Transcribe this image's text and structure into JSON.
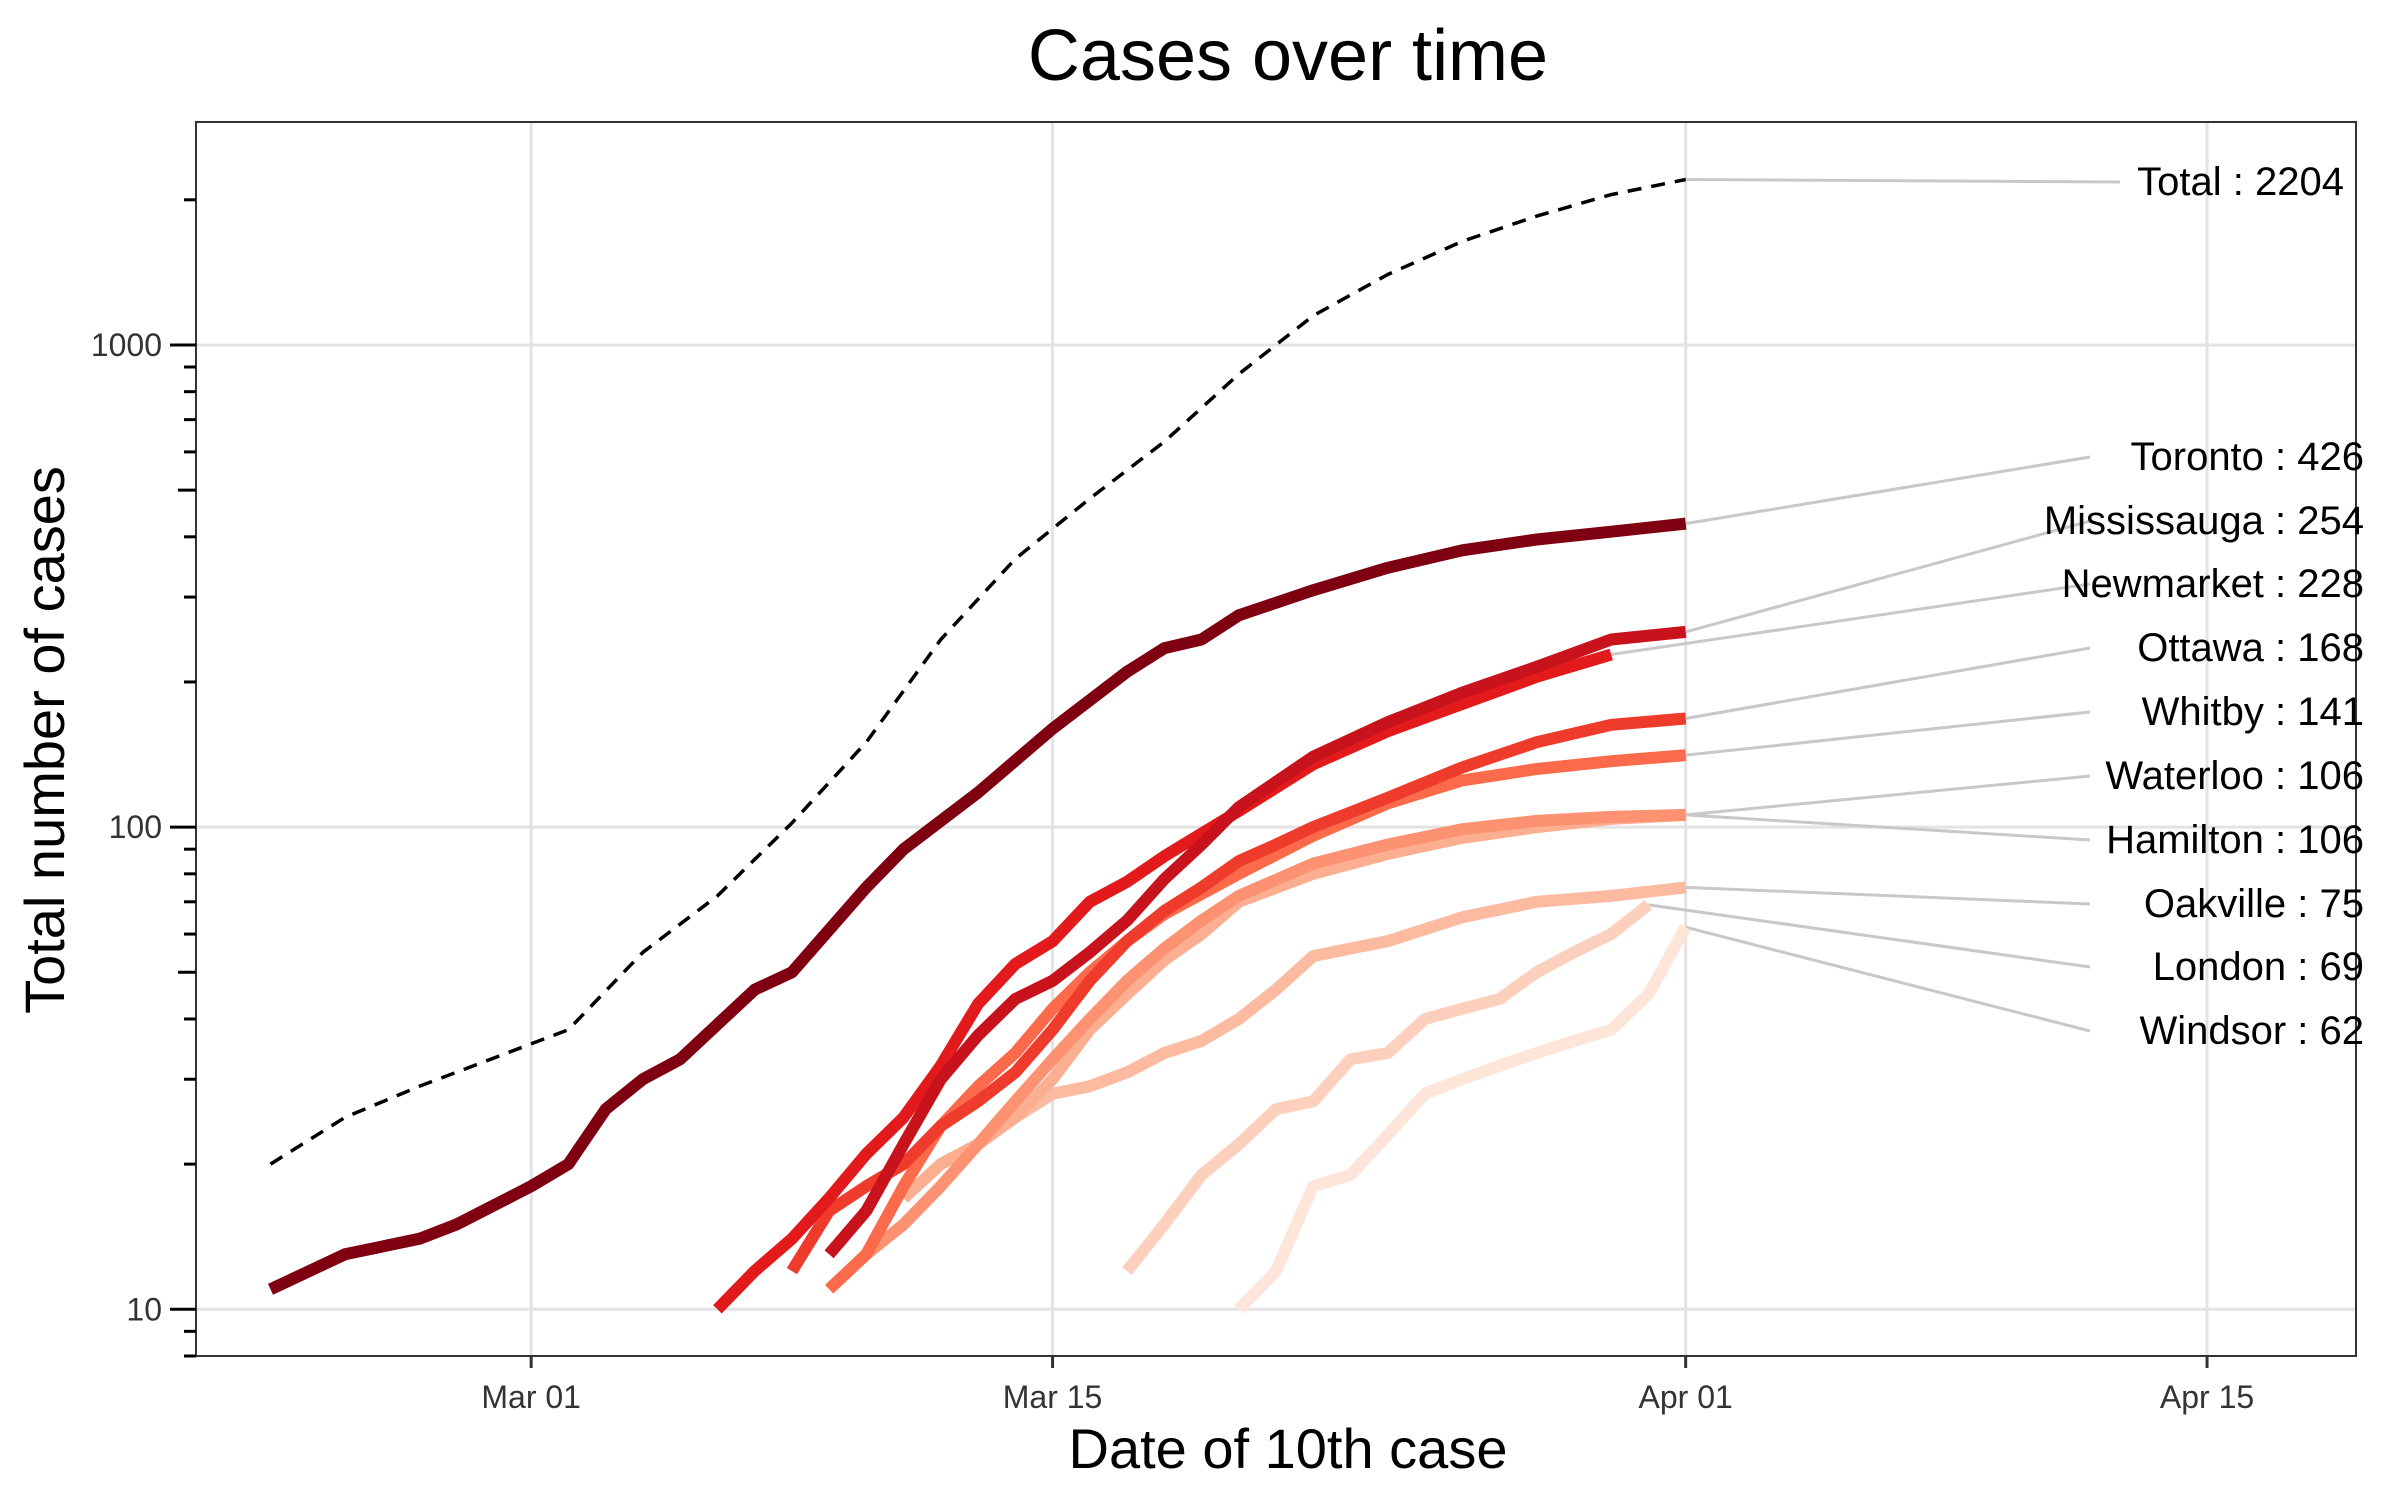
{
  "chart_data": {
    "type": "line",
    "title": "Cases over time",
    "xlabel": "Date of 10th case",
    "ylabel": "Total number of cases",
    "y_scale": "log10",
    "ylim": [
      8,
      2900
    ],
    "xlim": [
      "2020-02-21",
      "2020-04-19"
    ],
    "x_ticks": [
      {
        "date": "2020-03-01",
        "label": "Mar 01"
      },
      {
        "date": "2020-03-15",
        "label": "Mar 15"
      },
      {
        "date": "2020-04-01",
        "label": "Apr 01"
      },
      {
        "date": "2020-04-15",
        "label": "Apr 15"
      }
    ],
    "y_ticks": [
      {
        "value": 10,
        "label": "10"
      },
      {
        "value": 100,
        "label": "100"
      },
      {
        "value": 1000,
        "label": "1000"
      }
    ],
    "grid": true,
    "legend": "direct labels at right",
    "series": [
      {
        "name": "Total",
        "label": "Total : 2204",
        "color": "#000000",
        "dashed": true,
        "x": [
          "2020-02-23",
          "2020-02-25",
          "2020-02-27",
          "2020-03-02",
          "2020-03-04",
          "2020-03-06",
          "2020-03-08",
          "2020-03-10",
          "2020-03-12",
          "2020-03-14",
          "2020-03-16",
          "2020-03-18",
          "2020-03-20",
          "2020-03-22",
          "2020-03-24",
          "2020-03-26",
          "2020-03-28",
          "2020-03-30",
          "2020-04-01"
        ],
        "y": [
          20,
          25,
          29,
          38,
          55,
          72,
          102,
          150,
          245,
          360,
          480,
          630,
          870,
          1150,
          1400,
          1640,
          1850,
          2050,
          2204
        ]
      },
      {
        "name": "Toronto",
        "label": "Toronto : 426",
        "color": "#7f0010",
        "x": [
          "2020-02-23",
          "2020-02-25",
          "2020-02-27",
          "2020-02-28",
          "2020-03-01",
          "2020-03-02",
          "2020-03-03",
          "2020-03-04",
          "2020-03-05",
          "2020-03-07",
          "2020-03-08",
          "2020-03-10",
          "2020-03-11",
          "2020-03-13",
          "2020-03-15",
          "2020-03-17",
          "2020-03-18",
          "2020-03-19",
          "2020-03-20",
          "2020-03-22",
          "2020-03-24",
          "2020-03-26",
          "2020-03-28",
          "2020-03-30",
          "2020-04-01"
        ],
        "y": [
          11,
          13,
          14,
          15,
          18,
          20,
          26,
          30,
          33,
          46,
          50,
          75,
          90,
          118,
          160,
          210,
          235,
          245,
          275,
          310,
          345,
          375,
          395,
          410,
          426
        ]
      },
      {
        "name": "Mississauga",
        "label": "Mississauga : 254",
        "color": "#c8121c",
        "x": [
          "2020-03-09",
          "2020-03-10",
          "2020-03-11",
          "2020-03-12",
          "2020-03-13",
          "2020-03-14",
          "2020-03-15",
          "2020-03-16",
          "2020-03-17",
          "2020-03-18",
          "2020-03-19",
          "2020-03-20",
          "2020-03-22",
          "2020-03-24",
          "2020-03-26",
          "2020-03-28",
          "2020-03-30",
          "2020-04-01"
        ],
        "y": [
          13,
          16,
          22,
          30,
          37,
          44,
          48,
          55,
          64,
          78,
          92,
          110,
          140,
          165,
          190,
          215,
          245,
          254
        ]
      },
      {
        "name": "Newmarket",
        "label": "Newmarket : 228",
        "color": "#e31a1c",
        "x": [
          "2020-03-06",
          "2020-03-07",
          "2020-03-08",
          "2020-03-09",
          "2020-03-10",
          "2020-03-11",
          "2020-03-12",
          "2020-03-13",
          "2020-03-14",
          "2020-03-15",
          "2020-03-16",
          "2020-03-17",
          "2020-03-18",
          "2020-03-20",
          "2020-03-22",
          "2020-03-24",
          "2020-03-26",
          "2020-03-28",
          "2020-03-30"
        ],
        "y": [
          10,
          12,
          14,
          17,
          21,
          25,
          32,
          43,
          52,
          58,
          70,
          77,
          87,
          108,
          135,
          158,
          180,
          205,
          228
        ]
      },
      {
        "name": "Ottawa",
        "label": "Ottawa : 168",
        "color": "#ef3b2c",
        "x": [
          "2020-03-08",
          "2020-03-09",
          "2020-03-10",
          "2020-03-11",
          "2020-03-12",
          "2020-03-13",
          "2020-03-14",
          "2020-03-15",
          "2020-03-16",
          "2020-03-17",
          "2020-03-18",
          "2020-03-19",
          "2020-03-20",
          "2020-03-21",
          "2020-03-22",
          "2020-03-24",
          "2020-03-26",
          "2020-03-28",
          "2020-03-30",
          "2020-04-01"
        ],
        "y": [
          12,
          16,
          18,
          20,
          24,
          27,
          31,
          38,
          48,
          58,
          67,
          75,
          85,
          92,
          100,
          115,
          133,
          150,
          163,
          168
        ]
      },
      {
        "name": "Whitby",
        "label": "Whitby : 141",
        "color": "#fb6a4a",
        "x": [
          "2020-03-09",
          "2020-03-10",
          "2020-03-11",
          "2020-03-12",
          "2020-03-13",
          "2020-03-14",
          "2020-03-15",
          "2020-03-16",
          "2020-03-17",
          "2020-03-18",
          "2020-03-20",
          "2020-03-22",
          "2020-03-24",
          "2020-03-26",
          "2020-03-28",
          "2020-03-30",
          "2020-04-01"
        ],
        "y": [
          11,
          13,
          18,
          24,
          29,
          34,
          42,
          50,
          58,
          66,
          80,
          96,
          112,
          125,
          132,
          137,
          141
        ]
      },
      {
        "name": "Waterloo",
        "label": "Waterloo : 106",
        "color": "#fc9272",
        "x": [
          "2020-03-10",
          "2020-03-11",
          "2020-03-12",
          "2020-03-13",
          "2020-03-14",
          "2020-03-15",
          "2020-03-16",
          "2020-03-17",
          "2020-03-18",
          "2020-03-19",
          "2020-03-20",
          "2020-03-22",
          "2020-03-24",
          "2020-03-26",
          "2020-03-28",
          "2020-03-30",
          "2020-04-01"
        ],
        "y": [
          13,
          15,
          18,
          22,
          27,
          33,
          40,
          48,
          56,
          64,
          72,
          84,
          92,
          99,
          103,
          105,
          106
        ]
      },
      {
        "name": "Hamilton",
        "label": "Hamilton : 106",
        "color": "#fcae91",
        "x": [
          "2020-03-11",
          "2020-03-12",
          "2020-03-13",
          "2020-03-14",
          "2020-03-15",
          "2020-03-16",
          "2020-03-17",
          "2020-03-18",
          "2020-03-19",
          "2020-03-20",
          "2020-03-22",
          "2020-03-24",
          "2020-03-26",
          "2020-03-28",
          "2020-03-30",
          "2020-04-01"
        ],
        "y": [
          17,
          20,
          22,
          25,
          30,
          38,
          45,
          53,
          60,
          70,
          80,
          88,
          95,
          100,
          104,
          106
        ]
      },
      {
        "name": "Oakville",
        "label": "Oakville : 75",
        "color": "#fcbba1",
        "x": [
          "2020-03-14",
          "2020-03-15",
          "2020-03-16",
          "2020-03-17",
          "2020-03-18",
          "2020-03-19",
          "2020-03-20",
          "2020-03-21",
          "2020-03-22",
          "2020-03-23",
          "2020-03-24",
          "2020-03-26",
          "2020-03-28",
          "2020-03-30",
          "2020-04-01"
        ],
        "y": [
          25,
          28,
          29,
          31,
          34,
          36,
          40,
          46,
          54,
          56,
          58,
          65,
          70,
          72,
          75
        ]
      },
      {
        "name": "London",
        "label": "London : 69",
        "color": "#fdd0bd",
        "x": [
          "2020-03-17",
          "2020-03-18",
          "2020-03-19",
          "2020-03-20",
          "2020-03-21",
          "2020-03-22",
          "2020-03-23",
          "2020-03-24",
          "2020-03-25",
          "2020-03-26",
          "2020-03-27",
          "2020-03-28",
          "2020-03-29",
          "2020-03-30",
          "2020-03-31"
        ],
        "y": [
          12,
          15,
          19,
          22,
          26,
          27,
          33,
          34,
          40,
          42,
          44,
          50,
          55,
          60,
          69
        ]
      },
      {
        "name": "Windsor",
        "label": "Windsor : 62",
        "color": "#fee5d9",
        "x": [
          "2020-03-20",
          "2020-03-21",
          "2020-03-22",
          "2020-03-23",
          "2020-03-24",
          "2020-03-25",
          "2020-03-26",
          "2020-03-27",
          "2020-03-28",
          "2020-03-29",
          "2020-03-30",
          "2020-03-31",
          "2020-04-01"
        ],
        "y": [
          10,
          12,
          18,
          19,
          23,
          28,
          30,
          32,
          34,
          36,
          38,
          45,
          62
        ]
      }
    ]
  }
}
